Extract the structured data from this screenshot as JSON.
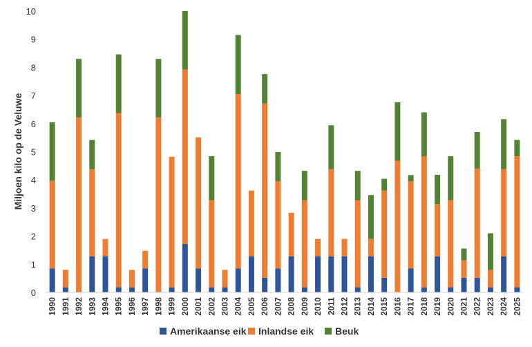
{
  "chart_data": {
    "type": "bar",
    "stacked": true,
    "ylabel": "Miljoen kilo op de Veluwe",
    "ylim": [
      0,
      10
    ],
    "yticks": [
      0,
      1,
      2,
      3,
      4,
      5,
      6,
      7,
      8,
      9,
      10
    ],
    "grid": false,
    "legend_position": "bottom",
    "categories": [
      "1990",
      "1991",
      "1992",
      "1993",
      "1994",
      "1995",
      "1996",
      "1997",
      "1998",
      "1999",
      "2000",
      "2001",
      "2002",
      "2003",
      "2004",
      "2005",
      "2006",
      "2007",
      "2008",
      "2009",
      "2010",
      "2011",
      "2012",
      "2013",
      "2014",
      "2015",
      "2016",
      "2017",
      "2018",
      "2019",
      "2020",
      "2021",
      "2022",
      "2023",
      "2024",
      "2025"
    ],
    "series": [
      {
        "name": "Amerikaanse eik",
        "color": "#2E5597",
        "values": [
          0.85,
          0.18,
          0,
          1.28,
          1.28,
          0.18,
          0.18,
          0.85,
          0,
          0.18,
          1.72,
          0.85,
          0.18,
          0.18,
          0.85,
          1.28,
          0.52,
          0.85,
          1.28,
          0.18,
          1.28,
          1.28,
          1.28,
          0.18,
          1.28,
          0.52,
          0,
          0.85,
          0.18,
          1.28,
          0.18,
          0.52,
          0.52,
          0.18,
          1.28,
          0.18
        ]
      },
      {
        "name": "Inlandse eik",
        "color": "#ED7D31",
        "values": [
          3.12,
          0.62,
          6.22,
          3.1,
          0.62,
          6.2,
          0.62,
          0.63,
          6.22,
          4.64,
          6.2,
          4.66,
          3.1,
          0.62,
          6.2,
          2.34,
          6.2,
          3.1,
          1.55,
          3.1,
          0.62,
          3.1,
          0.62,
          3.1,
          0.62,
          3.1,
          4.68,
          3.1,
          4.66,
          1.86,
          3.1,
          0.62,
          3.88,
          0.62,
          3.1,
          4.66
        ]
      },
      {
        "name": "Beuk",
        "color": "#548235",
        "values": [
          2.08,
          0,
          2.08,
          1.04,
          0,
          2.08,
          0,
          0,
          2.08,
          0,
          2.08,
          0,
          1.56,
          0,
          2.1,
          0,
          1.04,
          1.04,
          0,
          1.04,
          0,
          1.56,
          0,
          1.04,
          1.56,
          0.42,
          2.08,
          0.22,
          1.56,
          1.04,
          1.56,
          0.42,
          1.3,
          1.3,
          1.78,
          0.58
        ]
      }
    ]
  }
}
